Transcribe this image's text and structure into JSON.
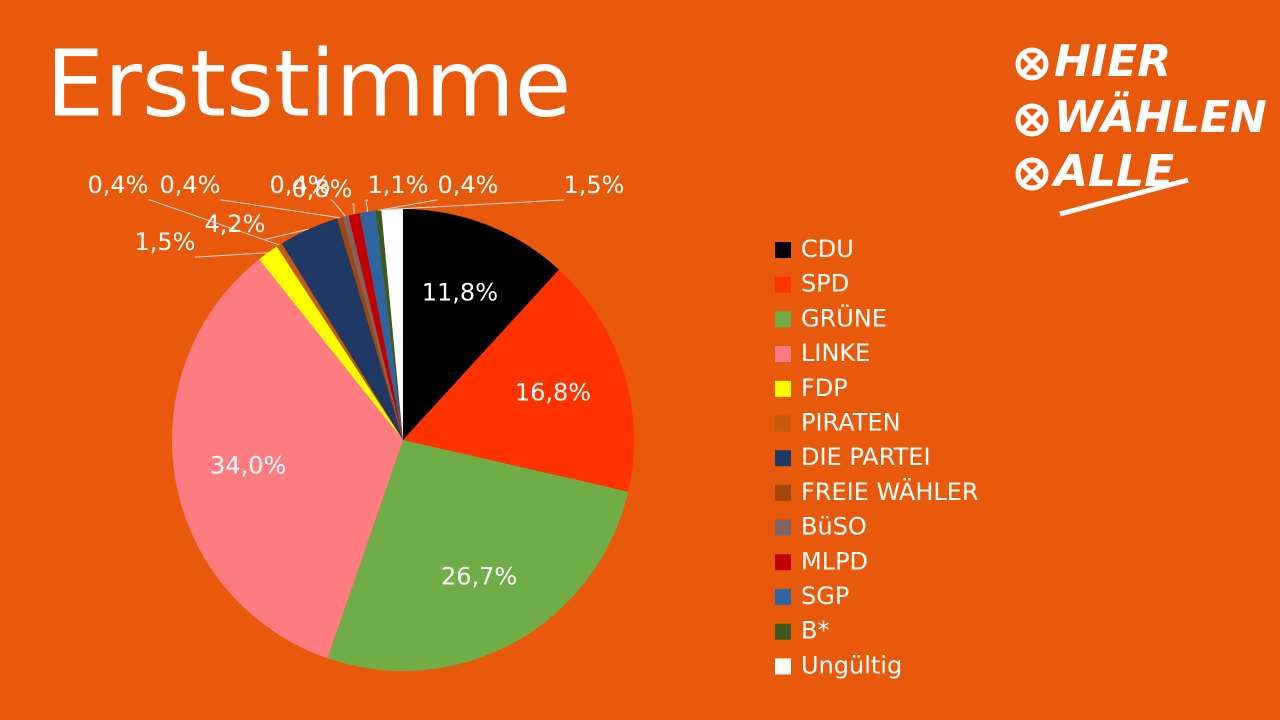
{
  "chart_data": {
    "type": "pie",
    "title": "Erststimme",
    "categories": [
      "CDU",
      "SPD",
      "GRÜNE",
      "LINKE",
      "FDP",
      "PIRATEN",
      "DIE PARTEI",
      "FREIE WÄHLER",
      "BüSO",
      "MLPD",
      "SGP",
      "B*",
      "Ungültig"
    ],
    "values": [
      11.8,
      16.8,
      26.7,
      34.0,
      1.5,
      0.4,
      4.2,
      0.4,
      0.4,
      0.8,
      1.1,
      0.4,
      1.5
    ],
    "value_labels": [
      "11,8%",
      "16,8%",
      "26,7%",
      "34,0%",
      "1,5%",
      "0,4%",
      "4,2%",
      "0,4%",
      "0,4%",
      "0,8%",
      "1,1%",
      "0,4%",
      "1,5%"
    ],
    "colors": [
      "#000000",
      "#ff3300",
      "#70ad47",
      "#ff7c80",
      "#ffff00",
      "#c55a11",
      "#203864",
      "#9e480e",
      "#7f6363",
      "#c00000",
      "#2e64a0",
      "#3a5a1e",
      "#ffffff"
    ],
    "legend": "right"
  },
  "logo": {
    "lines": [
      "HIER",
      "WÄHLEN",
      "ALLE"
    ]
  }
}
